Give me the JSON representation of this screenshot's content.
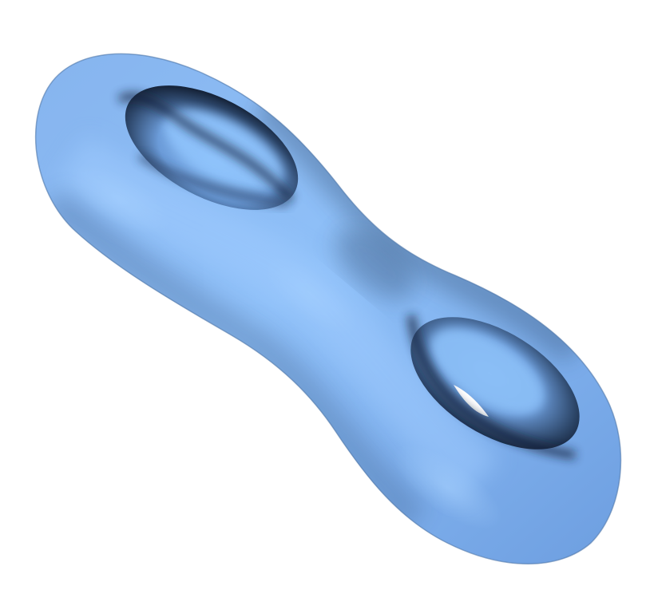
{
  "scene": {
    "subject": "double-torus-surface",
    "colors": {
      "background": "#ffffff",
      "surface_light": "#9ccaff",
      "surface_mid": "#6f9fe0",
      "surface_dark": "#3e5f8c",
      "shadow": "#1c2c44"
    }
  }
}
